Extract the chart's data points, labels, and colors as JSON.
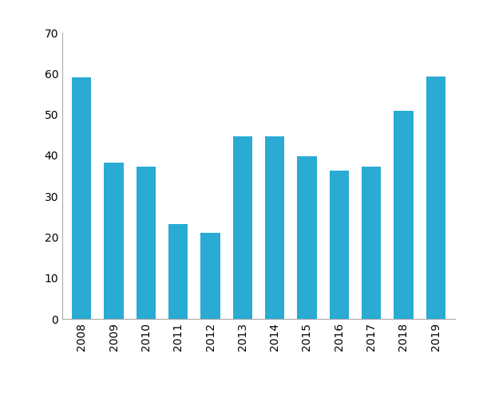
{
  "years": [
    "2008",
    "2009",
    "2010",
    "2011",
    "2012",
    "2013",
    "2014",
    "2015",
    "2016",
    "2017",
    "2018",
    "2019"
  ],
  "values": [
    59.0,
    38.2,
    37.3,
    23.3,
    21.0,
    44.6,
    44.6,
    39.8,
    36.3,
    37.3,
    51.0,
    59.3
  ],
  "bar_color": "#29ABD4",
  "ylim": [
    0,
    70
  ],
  "yticks": [
    0,
    10,
    20,
    30,
    40,
    50,
    60,
    70
  ],
  "background_color": "#ffffff",
  "tick_label_fontsize": 10,
  "spine_color": "#aaaaaa",
  "bar_width": 0.6
}
